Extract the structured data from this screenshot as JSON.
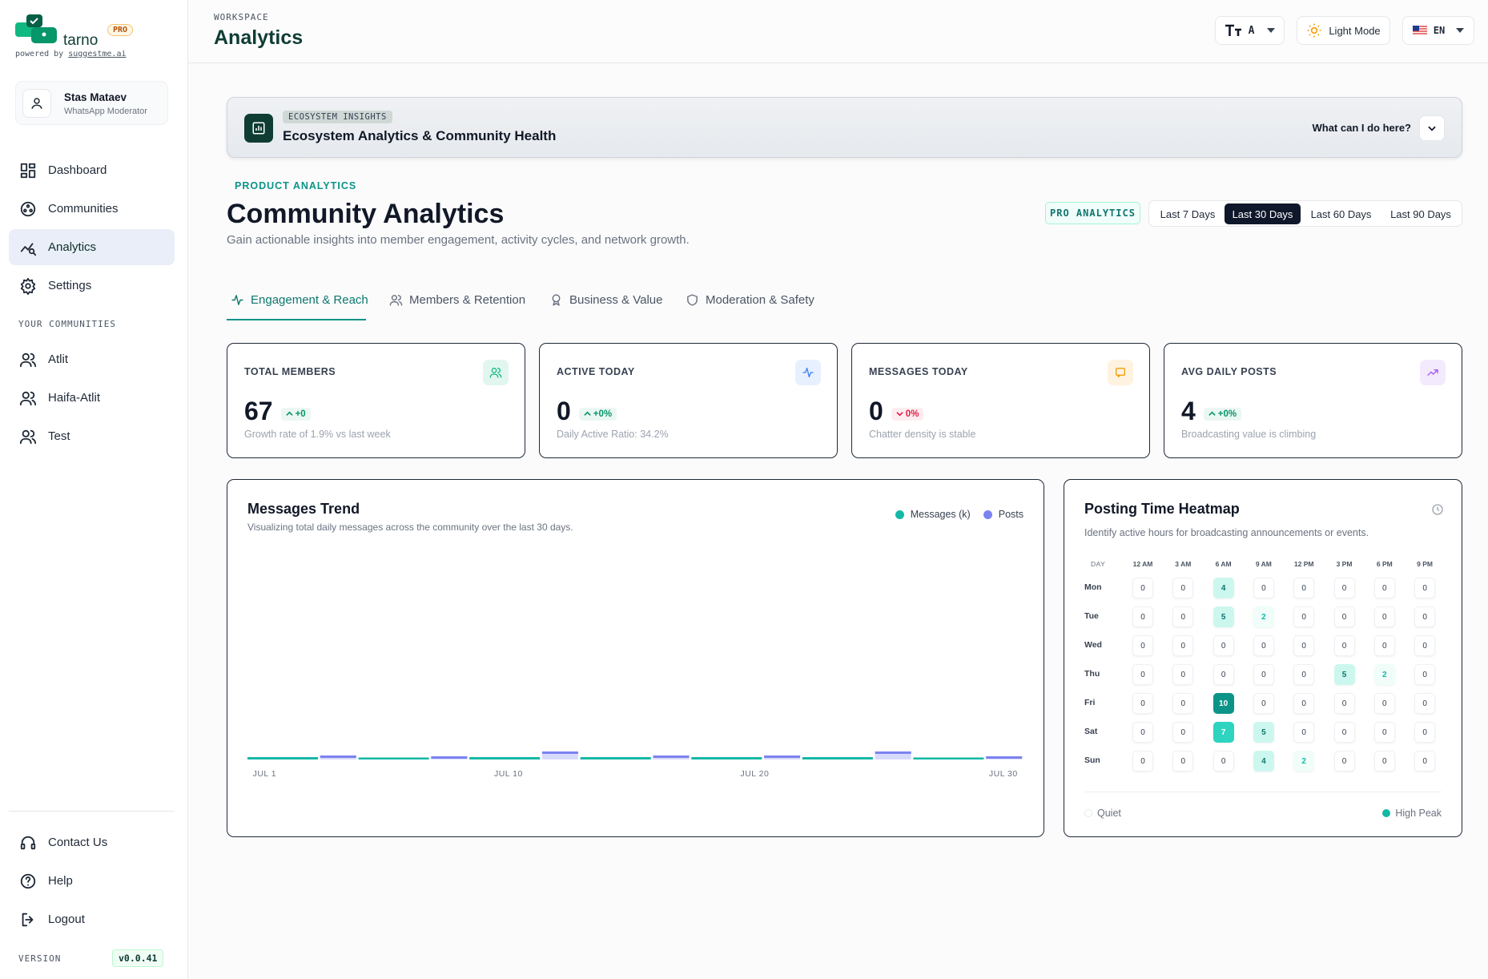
{
  "sidebar": {
    "brand": "tarno",
    "badge": "PRO",
    "powered_by": "powered by",
    "powered_domain": "suggestme.ai",
    "user": {
      "name": "Stas Mataev",
      "role": "WhatsApp Moderator"
    },
    "nav": [
      "Dashboard",
      "Communities",
      "Analytics",
      "Settings"
    ],
    "active_nav": 2,
    "communities_heading": "YOUR COMMUNITIES",
    "communities": [
      "Atlit",
      "Haifa-Atlit",
      "Test"
    ],
    "footer_nav": [
      "Contact Us",
      "Help",
      "Logout"
    ],
    "version_label": "VERSION",
    "version": "v0.0.41"
  },
  "header": {
    "eyebrow": "WORKSPACE",
    "title": "Analytics",
    "font_button": "A",
    "theme_button": "Light Mode",
    "language": "EN"
  },
  "banner": {
    "badge": "ECOSYSTEM INSIGHTS",
    "title": "Ecosystem Analytics & Community Health",
    "help": "What can I do here?"
  },
  "page": {
    "eyebrow": "PRODUCT ANALYTICS",
    "title": "Community Analytics",
    "subtitle": "Gain actionable insights into member engagement, activity cycles, and network growth.",
    "badge": "PRO ANALYTICS",
    "ranges": [
      "Last 7 Days",
      "Last 30 Days",
      "Last 60 Days",
      "Last 90 Days"
    ],
    "active_range": 1
  },
  "tabs": {
    "items": [
      "Engagement & Reach",
      "Members & Retention",
      "Business & Value",
      "Moderation & Safety"
    ],
    "active": 0
  },
  "stats": [
    {
      "label": "TOTAL MEMBERS",
      "value": 67,
      "change": "+0",
      "note": "Growth rate of 1.9% vs last week",
      "color": "#10b981",
      "change_color": "#059669"
    },
    {
      "label": "ACTIVE TODAY",
      "value": 0,
      "change": "+0%",
      "note": "Daily Active Ratio: 34.2%",
      "color": "#3b82f6",
      "change_color": "#059669"
    },
    {
      "label": "MESSAGES TODAY",
      "value": 0,
      "change": "0%",
      "note": "Chatter density is stable",
      "color": "#f59e0b",
      "change_color": "#e11d48"
    },
    {
      "label": "AVG DAILY POSTS",
      "value": 4,
      "change": "+0%",
      "note": "Broadcasting value is climbing",
      "color": "#a855f7",
      "change_color": "#059669"
    }
  ],
  "messages_trend": {
    "title": "Messages Trend",
    "subtitle": "Visualizing total daily messages across the community over the last 30 days.",
    "x_labels": [
      "JUL 1",
      "JUL 10",
      "JUL 20",
      "JUL 30"
    ],
    "series": [
      {
        "name": "Messages (k)",
        "color": "#14b8a6",
        "values": [
          0.3,
          0.25,
          0.3,
          0.3,
          0.3,
          0.3,
          0.25
        ]
      },
      {
        "name": "Posts",
        "color": "#7c83f0",
        "values": [
          0.5,
          0.4,
          1.0,
          0.5,
          0.5,
          1.0,
          0.4
        ]
      }
    ]
  },
  "heatmap": {
    "title": "Posting Time Heatmap",
    "subtitle": "Identify active hours for broadcasting announcements or events.",
    "day_heading": "DAY",
    "hours": [
      "12 AM",
      "3 AM",
      "6 AM",
      "9 AM",
      "12 PM",
      "3 PM",
      "6 PM",
      "9 PM"
    ],
    "days": [
      "Mon",
      "Tue",
      "Wed",
      "Thu",
      "Fri",
      "Sat",
      "Sun"
    ],
    "values": [
      [
        0,
        0,
        4,
        0,
        0,
        0,
        0,
        0
      ],
      [
        0,
        0,
        5,
        2,
        0,
        0,
        0,
        0
      ],
      [
        0,
        0,
        0,
        0,
        0,
        0,
        0,
        0
      ],
      [
        0,
        0,
        0,
        0,
        0,
        5,
        2,
        0
      ],
      [
        0,
        0,
        10,
        0,
        0,
        0,
        0,
        0
      ],
      [
        0,
        0,
        7,
        5,
        0,
        0,
        0,
        0
      ],
      [
        0,
        0,
        0,
        4,
        2,
        0,
        0,
        0
      ]
    ],
    "legend": [
      "Quiet",
      "High Peak"
    ]
  }
}
